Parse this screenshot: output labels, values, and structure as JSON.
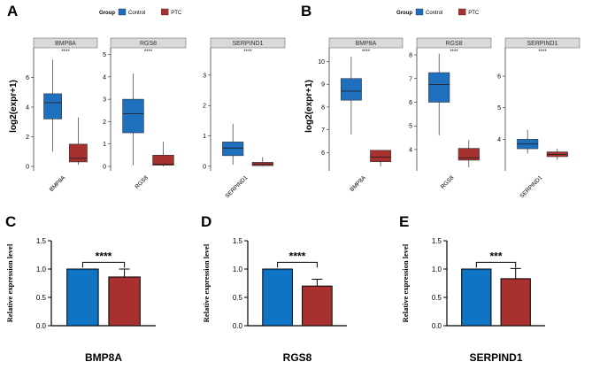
{
  "legend": {
    "title": "Group",
    "items": [
      {
        "label": "Control",
        "color": "#1f6fbf"
      },
      {
        "label": "PTC",
        "color": "#a8302e"
      }
    ]
  },
  "colors": {
    "control": "#1f6fbf",
    "ptc": "#a8302e",
    "bar_blue": "#0f74c4",
    "bar_red": "#a8302e",
    "strip_bg": "#d9d9d9"
  },
  "chart_data": [
    {
      "panel": "A",
      "type": "box",
      "ylabel": "log2(expr+1)",
      "facets": [
        {
          "strip": "BMP8A",
          "xlabel": "BMP8A",
          "significance": "****",
          "ylim": [
            -0.3,
            8.0
          ],
          "yticks": [
            0,
            2,
            4,
            6
          ],
          "boxes": [
            {
              "group": "Control",
              "min": 1.0,
              "q1": 3.2,
              "median": 4.3,
              "q3": 4.9,
              "max": 7.2
            },
            {
              "group": "PTC",
              "min": 0.1,
              "q1": 0.3,
              "median": 0.55,
              "q3": 1.5,
              "max": 3.3
            }
          ]
        },
        {
          "strip": "RGS8",
          "xlabel": "RGS8",
          "significance": "****",
          "ylim": [
            -0.2,
            5.3
          ],
          "yticks": [
            0,
            1,
            2,
            3,
            4,
            5
          ],
          "boxes": [
            {
              "group": "Control",
              "min": 0.05,
              "q1": 1.5,
              "median": 2.35,
              "q3": 3.0,
              "max": 4.15
            },
            {
              "group": "PTC",
              "min": 0.0,
              "q1": 0.05,
              "median": 0.1,
              "q3": 0.5,
              "max": 1.1
            }
          ]
        },
        {
          "strip": "SERPIND1",
          "xlabel": "SERPIND1",
          "significance": "****",
          "ylim": [
            -0.15,
            3.9
          ],
          "yticks": [
            0,
            1,
            2,
            3
          ],
          "boxes": [
            {
              "group": "Control",
              "min": 0.05,
              "q1": 0.35,
              "median": 0.6,
              "q3": 0.8,
              "max": 1.4
            },
            {
              "group": "PTC",
              "min": 0.0,
              "q1": 0.02,
              "median": 0.07,
              "q3": 0.13,
              "max": 0.3
            }
          ]
        }
      ]
    },
    {
      "panel": "B",
      "type": "box",
      "ylabel": "log2(expr+1)",
      "facets": [
        {
          "strip": "BMP8A",
          "xlabel": "BMP8A",
          "significance": "****",
          "ylim": [
            5.2,
            10.6
          ],
          "yticks": [
            6,
            7,
            8,
            9,
            10
          ],
          "boxes": [
            {
              "group": "Control",
              "min": 6.8,
              "q1": 8.3,
              "median": 8.7,
              "q3": 9.25,
              "max": 10.2
            },
            {
              "group": "PTC",
              "min": 5.4,
              "q1": 5.6,
              "median": 5.8,
              "q3": 6.1,
              "max": 6.1
            }
          ]
        },
        {
          "strip": "RGS8",
          "xlabel": "RGS8",
          "significance": "****",
          "ylim": [
            3.1,
            8.3
          ],
          "yticks": [
            4,
            5,
            6,
            7,
            8
          ],
          "boxes": [
            {
              "group": "Control",
              "min": 4.6,
              "q1": 6.0,
              "median": 6.75,
              "q3": 7.25,
              "max": 8.05
            },
            {
              "group": "PTC",
              "min": 3.25,
              "q1": 3.55,
              "median": 3.65,
              "q3": 4.05,
              "max": 4.4
            }
          ]
        },
        {
          "strip": "SERPIND1",
          "xlabel": "SERPIND1",
          "significance": "****",
          "ylim": [
            3.0,
            6.9
          ],
          "yticks": [
            4,
            5,
            6
          ],
          "boxes": [
            {
              "group": "Control",
              "min": 3.55,
              "q1": 3.7,
              "median": 3.85,
              "q3": 4.0,
              "max": 4.3
            },
            {
              "group": "PTC",
              "min": 3.35,
              "q1": 3.45,
              "median": 3.52,
              "q3": 3.6,
              "max": 3.7
            }
          ]
        }
      ]
    },
    {
      "panel": "C",
      "type": "bar",
      "ylabel": "Relative expression level",
      "xlabel": "BMP8A",
      "ylim": [
        0,
        1.5
      ],
      "yticks": [
        "0.0",
        "0.5",
        "1.0",
        "1.5"
      ],
      "significance": "****",
      "series": [
        {
          "name": "Control",
          "value": 1.0,
          "error": 0
        },
        {
          "name": "PTC",
          "value": 0.86,
          "error": 0.14
        }
      ]
    },
    {
      "panel": "D",
      "type": "bar",
      "ylabel": "Relative expression level",
      "xlabel": "RGS8",
      "ylim": [
        0,
        1.5
      ],
      "yticks": [
        "0.0",
        "0.5",
        "1.0",
        "1.5"
      ],
      "significance": "****",
      "series": [
        {
          "name": "Control",
          "value": 1.0,
          "error": 0
        },
        {
          "name": "PTC",
          "value": 0.7,
          "error": 0.12
        }
      ]
    },
    {
      "panel": "E",
      "type": "bar",
      "ylabel": "Relative expression level",
      "xlabel": "SERPIND1",
      "ylim": [
        0,
        1.5
      ],
      "yticks": [
        "0.0",
        "0.5",
        "1.0",
        "1.5"
      ],
      "significance": "***",
      "series": [
        {
          "name": "Control",
          "value": 1.0,
          "error": 0
        },
        {
          "name": "PTC",
          "value": 0.83,
          "error": 0.18
        }
      ]
    }
  ]
}
